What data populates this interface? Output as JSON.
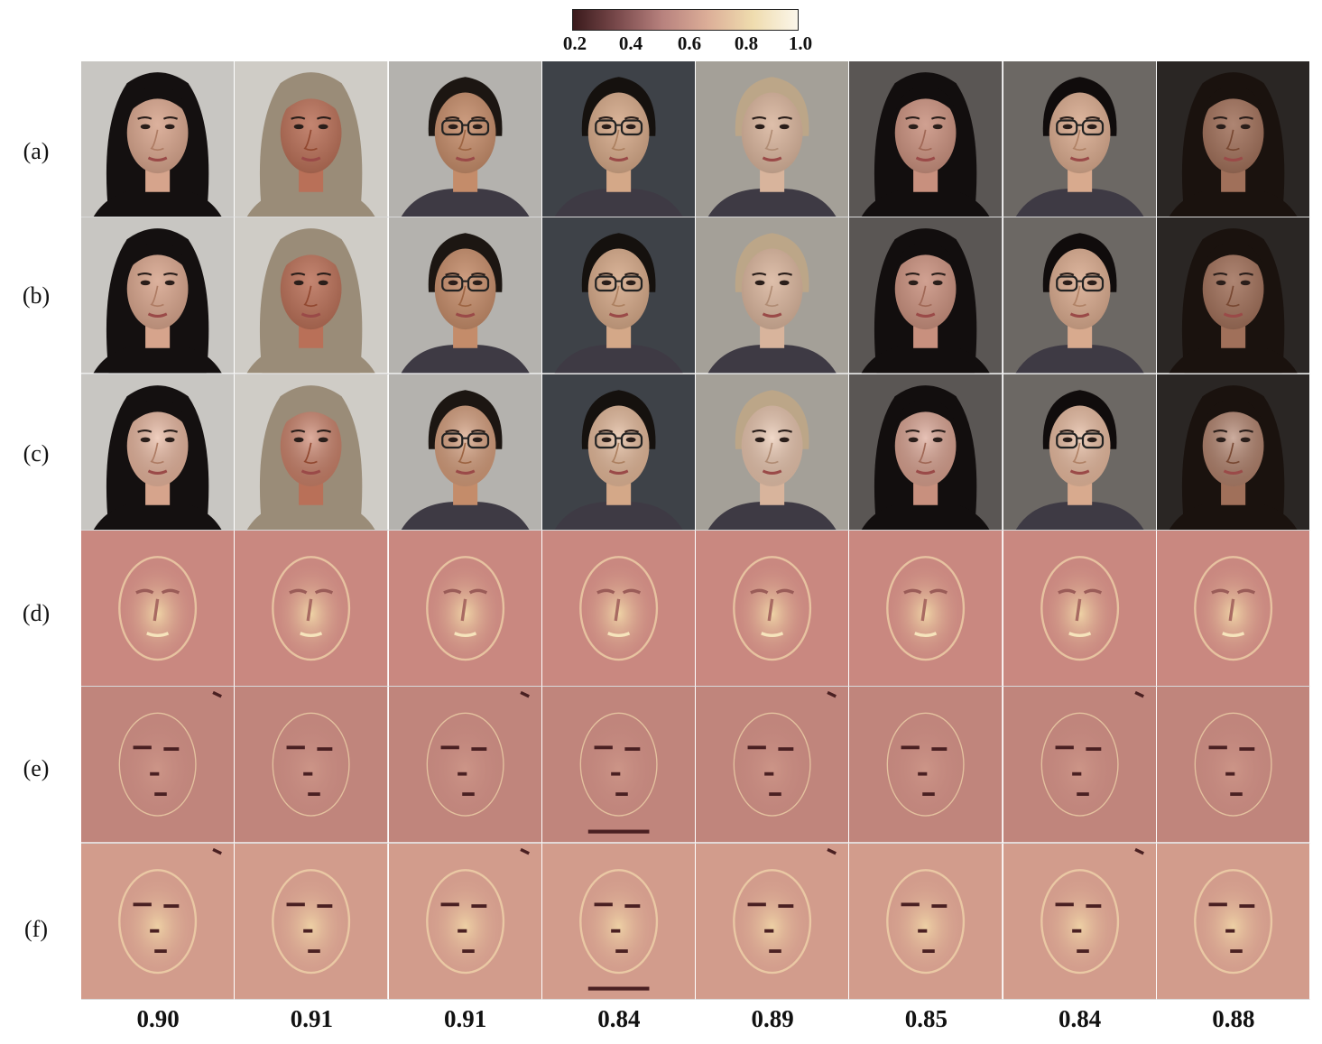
{
  "colorbar": {
    "ticks": [
      "0.2",
      "0.4",
      "0.6",
      "0.8",
      "1.0"
    ],
    "colors": [
      "#3a1a1c",
      "#7a4a4c",
      "#b8827e",
      "#dcae98",
      "#efdcae",
      "#fbf6ea"
    ]
  },
  "rows": [
    {
      "label": "(a)",
      "kind": "photo"
    },
    {
      "label": "(b)",
      "kind": "photo"
    },
    {
      "label": "(c)",
      "kind": "photo"
    },
    {
      "label": "(d)",
      "kind": "heat-bright"
    },
    {
      "label": "(e)",
      "kind": "heat-edge"
    },
    {
      "label": "(f)",
      "kind": "heat-bright-edge"
    }
  ],
  "columns": [
    {
      "score": "0.90",
      "skin": "#d6a48c",
      "hair": "#141010",
      "bg": "#c8c6c2",
      "glasses": false,
      "female": true
    },
    {
      "score": "0.91",
      "skin": "#b97058",
      "hair": "#9a8c78",
      "bg": "#cfccc6",
      "glasses": false,
      "female": true
    },
    {
      "score": "0.91",
      "skin": "#c48c6a",
      "hair": "#1c1612",
      "bg": "#b4b2ae",
      "glasses": true,
      "female": false
    },
    {
      "score": "0.84",
      "skin": "#d4a888",
      "hair": "#15110e",
      "bg": "#3e4248",
      "glasses": true,
      "female": false
    },
    {
      "score": "0.89",
      "skin": "#d8b49c",
      "hair": "#bca688",
      "bg": "#a4a098",
      "glasses": false,
      "female": false
    },
    {
      "score": "0.85",
      "skin": "#c8907e",
      "hair": "#120e0e",
      "bg": "#5a5654",
      "glasses": false,
      "female": true
    },
    {
      "score": "0.84",
      "skin": "#d8aa8e",
      "hair": "#100c0c",
      "bg": "#6c6864",
      "glasses": true,
      "female": false
    },
    {
      "score": "0.88",
      "skin": "#a0705a",
      "hair": "#1a120e",
      "bg": "#2a2624",
      "glasses": false,
      "female": true
    }
  ]
}
